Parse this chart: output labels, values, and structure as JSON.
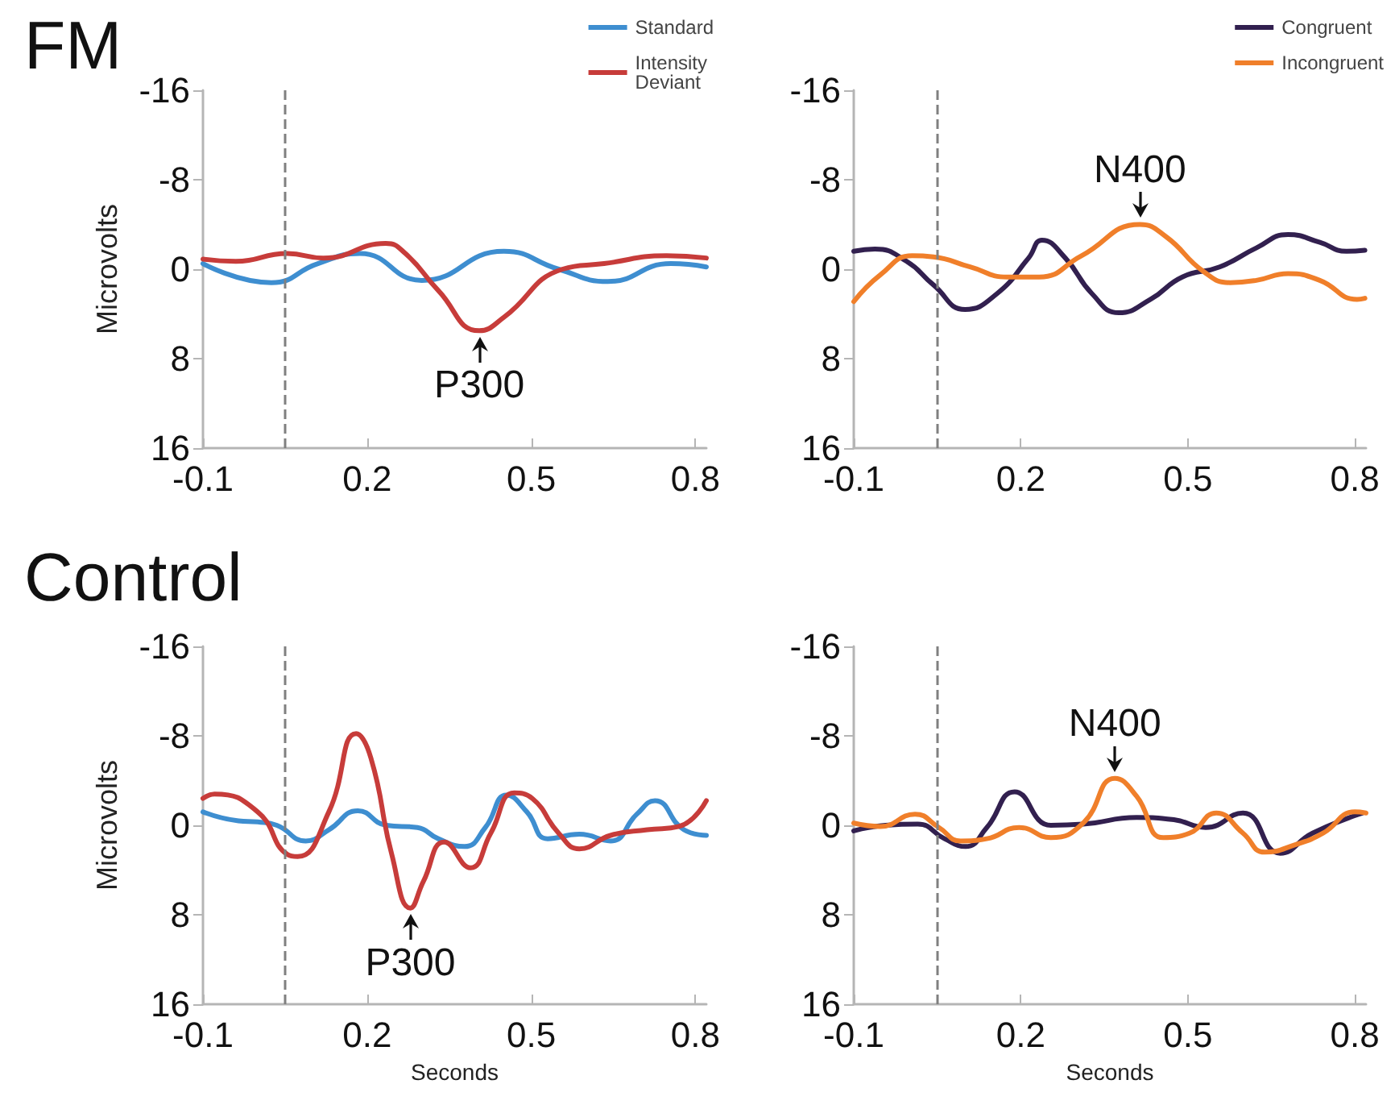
{
  "chart_data": [
    {
      "type": "line",
      "title": "FM",
      "ylabel": "Microvolts",
      "xlim": [
        -0.1,
        0.82
      ],
      "xticks": [
        -0.1,
        0.2,
        0.5,
        0.8
      ],
      "ylim": [
        16,
        -16
      ],
      "yticks": [
        -16,
        -8,
        0,
        8,
        16
      ],
      "grid": false,
      "legend": "top right",
      "marker": "none",
      "line_style": "solid",
      "ref_lines": [
        {
          "axis": "x",
          "value": 0.05,
          "color": "#808080",
          "line_style": "dashed"
        }
      ],
      "annotations": [
        {
          "text": "P300",
          "x": 0.405,
          "y": 5.5
        }
      ],
      "series": [
        {
          "name": "Standard",
          "color": "#3e8ed0",
          "x": [
            -0.1,
            0.025,
            0.11,
            0.187,
            0.3,
            0.45,
            0.55,
            0.64,
            0.755,
            0.82
          ],
          "values": [
            -0.5,
            1.2,
            -0.5,
            -1.4,
            1.0,
            -1.6,
            0,
            1.1,
            -0.5,
            -0.2
          ]
        },
        {
          "name": "Intensity Deviant",
          "color": "#c73c3a",
          "x": [
            -0.1,
            -0.04,
            0.054,
            0.12,
            0.234,
            0.27,
            0.33,
            0.405,
            0.45,
            0.557,
            0.633,
            0.747,
            0.82
          ],
          "values": [
            -0.9,
            -0.7,
            -1.4,
            -1.0,
            -2.3,
            -1.4,
            1.9,
            5.5,
            4.3,
            0,
            -0.5,
            -1.2,
            -1.0
          ]
        }
      ]
    },
    {
      "type": "line",
      "xlim": [
        -0.1,
        0.82
      ],
      "xticks": [
        -0.1,
        0.2,
        0.5,
        0.8
      ],
      "ylim": [
        16,
        -16
      ],
      "yticks": [
        -16,
        -8,
        0,
        8,
        16
      ],
      "grid": false,
      "legend": "top right",
      "marker": "none",
      "line_style": "solid",
      "ref_lines": [
        {
          "axis": "x",
          "value": 0.05,
          "color": "#808080",
          "line_style": "dashed"
        }
      ],
      "annotations": [
        {
          "text": "N400",
          "x": 0.414,
          "y": -4.0
        }
      ],
      "series": [
        {
          "name": "Congruent",
          "color": "#32204f",
          "x": [
            -0.1,
            -0.062,
            -0.005,
            0.043,
            0.1,
            0.157,
            0.214,
            0.238,
            0.28,
            0.328,
            0.376,
            0.433,
            0.49,
            0.557,
            0.623,
            0.68,
            0.737,
            0.785,
            0.818
          ],
          "values": [
            -1.6,
            -1.8,
            -0.7,
            1.4,
            3.6,
            2.2,
            -1.0,
            -2.6,
            -1.0,
            2.2,
            3.9,
            2.7,
            0.7,
            -0.2,
            -1.9,
            -3.1,
            -2.4,
            -1.6,
            -1.7
          ]
        },
        {
          "name": "Incongruent",
          "color": "#f07f2a",
          "x": [
            -0.1,
            -0.052,
            0.005,
            0.043,
            0.109,
            0.176,
            0.233,
            0.309,
            0.414,
            0.461,
            0.528,
            0.576,
            0.623,
            0.68,
            0.737,
            0.804,
            0.818
          ],
          "values": [
            2.9,
            0.5,
            -1.2,
            -1.1,
            -0.2,
            0.7,
            0.7,
            -1.2,
            -4.0,
            -2.9,
            0.2,
            1.2,
            1.0,
            0.4,
            1.0,
            2.7,
            2.6
          ]
        }
      ]
    },
    {
      "type": "line",
      "title": "Control",
      "ylabel": "Microvolts",
      "xlabel": "Seconds",
      "xlim": [
        -0.1,
        0.82
      ],
      "xticks": [
        -0.1,
        0.2,
        0.5,
        0.8
      ],
      "ylim": [
        16,
        -16
      ],
      "yticks": [
        -16,
        -8,
        0,
        8,
        16
      ],
      "grid": false,
      "marker": "none",
      "line_style": "solid",
      "ref_lines": [
        {
          "axis": "x",
          "value": 0.05,
          "color": "#808080",
          "line_style": "dashed"
        }
      ],
      "annotations": [
        {
          "text": "P300",
          "x": 0.279,
          "y": 7.4
        }
      ],
      "series": [
        {
          "color": "#3e8ed0",
          "x": [
            -0.1,
            -0.035,
            0.0,
            0.035,
            0.088,
            0.13,
            0.183,
            0.235,
            0.292,
            0.33,
            0.378,
            0.416,
            0.455,
            0.492,
            0.53,
            0.588,
            0.645,
            0.693,
            0.726,
            0.779,
            0.82
          ],
          "values": [
            -1.2,
            -0.4,
            -0.3,
            0,
            1.4,
            0.4,
            -1.3,
            0,
            0.2,
            1.2,
            1.9,
            0.2,
            -2.7,
            -1.2,
            1.2,
            0.8,
            1.4,
            -1.0,
            -2.2,
            0.4,
            0.9
          ]
        },
        {
          "color": "#c73c3a",
          "x": [
            -0.1,
            -0.079,
            0.0,
            0.054,
            0.073,
            0.13,
            0.18,
            0.207,
            0.245,
            0.279,
            0.303,
            0.341,
            0.389,
            0.426,
            0.469,
            0.502,
            0.55,
            0.588,
            0.645,
            0.712,
            0.77,
            0.82
          ],
          "values": [
            -2.4,
            -2.8,
            -1.2,
            2.6,
            2.8,
            -1.2,
            -8.2,
            -6.0,
            2.6,
            7.4,
            5.0,
            1.5,
            3.8,
            0.7,
            -2.9,
            -2.4,
            0.7,
            2.1,
            0.9,
            0.4,
            0.1,
            -2.2
          ]
        }
      ]
    },
    {
      "type": "line",
      "xlabel": "Seconds",
      "xlim": [
        -0.1,
        0.82
      ],
      "xticks": [
        -0.1,
        0.2,
        0.5,
        0.8
      ],
      "ylim": [
        16,
        -16
      ],
      "yticks": [
        -16,
        -8,
        0,
        8,
        16
      ],
      "grid": false,
      "marker": "none",
      "line_style": "solid",
      "ref_lines": [
        {
          "axis": "x",
          "value": 0.05,
          "color": "#808080",
          "line_style": "dashed"
        }
      ],
      "annotations": [
        {
          "text": "N400",
          "x": 0.369,
          "y": -4.2
        }
      ],
      "series": [
        {
          "color": "#32204f",
          "x": [
            -0.1,
            -0.043,
            0.015,
            0.063,
            0.101,
            0.139,
            0.189,
            0.254,
            0.312,
            0.408,
            0.475,
            0.532,
            0.599,
            0.666,
            0.724,
            0.814
          ],
          "values": [
            0.5,
            0,
            -0.1,
            1.2,
            1.9,
            0.2,
            -3.0,
            0,
            -0.1,
            -0.7,
            -0.5,
            0.2,
            -1.1,
            2.5,
            0.7,
            -1.1
          ]
        },
        {
          "color": "#f07f2a",
          "x": [
            -0.1,
            -0.052,
            0.01,
            0.053,
            0.092,
            0.139,
            0.197,
            0.254,
            0.312,
            0.369,
            0.408,
            0.456,
            0.503,
            0.551,
            0.599,
            0.638,
            0.695,
            0.743,
            0.8,
            0.82
          ],
          "values": [
            -0.2,
            0.1,
            -1.0,
            0.2,
            1.4,
            1.2,
            0.2,
            1.1,
            -0.2,
            -4.2,
            -2.6,
            1.1,
            0.7,
            -1.1,
            0.7,
            2.4,
            1.7,
            0.7,
            -1.2,
            -1.1
          ]
        }
      ]
    }
  ]
}
